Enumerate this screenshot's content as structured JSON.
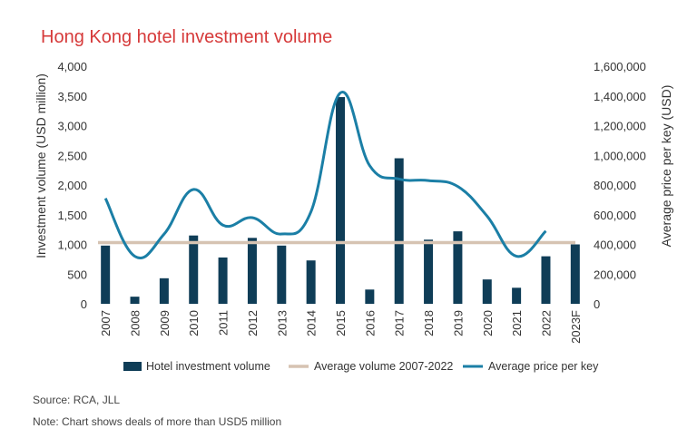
{
  "chart_data": {
    "type": "bar",
    "title": "Hong Kong hotel investment volume",
    "categories": [
      "2007",
      "2008",
      "2009",
      "2010",
      "2011",
      "2012",
      "2013",
      "2014",
      "2015",
      "2016",
      "2017",
      "2018",
      "2019",
      "2020",
      "2021",
      "2022",
      "2023F"
    ],
    "ylabel": "Investment volume (USD million)",
    "y2label": "Average price per key (USD)",
    "ylim": [
      0,
      4000
    ],
    "y2lim": [
      0,
      1600000
    ],
    "yticks": [
      "0",
      "500",
      "1,000",
      "1,500",
      "2,000",
      "2,500",
      "3,000",
      "3,500",
      "4,000"
    ],
    "y2ticks": [
      "0",
      "200,000",
      "400,000",
      "600,000",
      "800,000",
      "1,000,000",
      "1,200,000",
      "1,400,000",
      "1,600,000"
    ],
    "series": [
      {
        "name": "Hotel investment volume",
        "type": "bar",
        "color": "#0f3d57",
        "values": [
          980,
          120,
          430,
          1150,
          780,
          1110,
          980,
          730,
          3480,
          240,
          2450,
          1080,
          1220,
          410,
          270,
          800,
          1000
        ]
      },
      {
        "name": "Average volume 2007-2022",
        "type": "line",
        "color": "#d6c3b2",
        "values": [
          1030,
          1030,
          1030,
          1030,
          1030,
          1030,
          1030,
          1030,
          1030,
          1030,
          1030,
          1030,
          1030,
          1030,
          1030,
          1030,
          1030
        ]
      },
      {
        "name": "Average price per key",
        "type": "line",
        "axis": "right",
        "color": "#1b7fa6",
        "values": [
          710000,
          320000,
          470000,
          770000,
          530000,
          580000,
          470000,
          620000,
          1420000,
          930000,
          840000,
          830000,
          790000,
          590000,
          320000,
          490000,
          null
        ]
      }
    ],
    "legend_position": "bottom",
    "grid": false
  },
  "footnotes": {
    "source": "Source: RCA, JLL",
    "note": "Note: Chart shows deals of more than USD5 million"
  }
}
